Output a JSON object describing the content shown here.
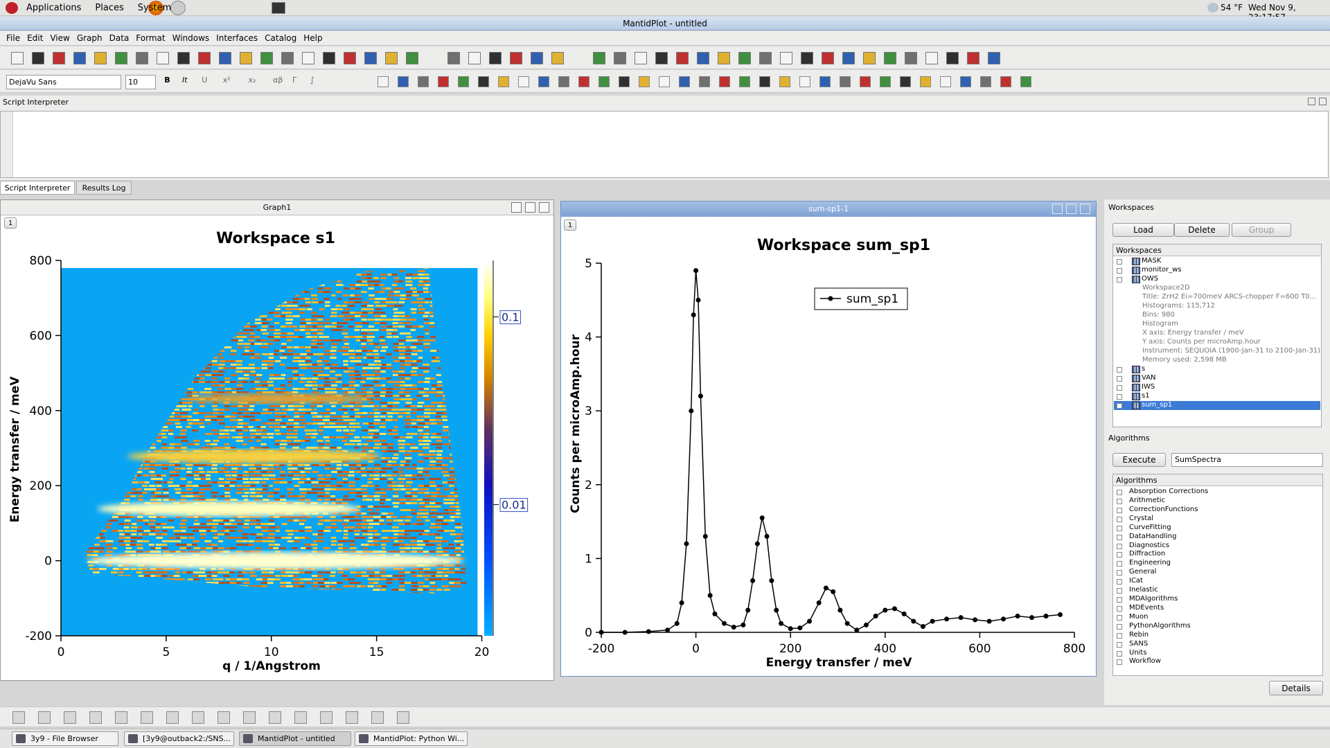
{
  "top_panel": {
    "menus": [
      "Applications",
      "Places",
      "System"
    ],
    "weather": "54 °F",
    "clock": "Wed Nov 9, 23:17:57"
  },
  "window_title": "MantidPlot - untitled",
  "menu_bar": [
    "File",
    "Edit",
    "View",
    "Graph",
    "Data",
    "Format",
    "Windows",
    "Interfaces",
    "Catalog",
    "Help"
  ],
  "font_toolbar": {
    "font": "DejaVu Sans",
    "size": "10",
    "buttons": [
      "B",
      "It",
      "U",
      "x²",
      "x₂",
      "αβ",
      "Γ",
      "∫"
    ]
  },
  "script_panel": {
    "title": "Script Interpreter",
    "tabs": [
      "Script Interpreter",
      "Results Log"
    ]
  },
  "graph_windows": [
    {
      "title": "Graph1",
      "layer": "1"
    },
    {
      "title": "sum-sp1-1",
      "layer": "1"
    }
  ],
  "workspaces": {
    "title": "Workspaces",
    "buttons": [
      "Load",
      "Delete",
      "Group"
    ],
    "tree_header": "Workspaces",
    "items": [
      {
        "name": "MASK"
      },
      {
        "name": "monitor_ws"
      },
      {
        "name": "OWS",
        "details": [
          "Workspace2D",
          "Title: ZrH2 Ei=700meV ARCS-chopper F=600 T0...",
          "Histograms: 115,712",
          "Bins: 980",
          "Histogram",
          "X axis: Energy transfer / meV",
          "Y axis: Counts per microAmp.hour",
          "Instrument: SEQUOIA (1900-Jan-31 to 2100-Jan-31)",
          "Memory used: 2,598 MB"
        ]
      },
      {
        "name": "s"
      },
      {
        "name": "VAN"
      },
      {
        "name": "IWS"
      },
      {
        "name": "s1"
      },
      {
        "name": "sum_sp1",
        "selected": true
      }
    ]
  },
  "algorithms": {
    "title": "Algorithms",
    "execute": "Execute",
    "selected": "SumSpectra",
    "tree_header": "Algorithms",
    "categories": [
      "Absorption Corrections",
      "Arithmetic",
      "CorrectionFunctions",
      "Crystal",
      "CurveFitting",
      "DataHandling",
      "Diagnostics",
      "Diffraction",
      "Engineering",
      "General",
      "ICat",
      "Inelastic",
      "MDAlgorithms",
      "MDEvents",
      "Muon",
      "PythonAlgorithms",
      "Rebin",
      "SANS",
      "Units",
      "Workflow"
    ],
    "details": "Details"
  },
  "taskbar": [
    "3y9 - File Browser",
    "[3y9@outback2:/SNS...",
    "MantidPlot - untitled",
    "MantidPlot: Python Wi..."
  ],
  "chart_data": [
    {
      "type": "heatmap",
      "title": "Workspace s1",
      "x_label": "q / 1/Angstrom",
      "y_label": "Energy transfer / meV",
      "xlim": [
        0,
        20
      ],
      "xticks": [
        0,
        5,
        10,
        15,
        20
      ],
      "ylim": [
        -200,
        800
      ],
      "yticks": [
        -200,
        0,
        200,
        400,
        600,
        800
      ],
      "colorbar": {
        "scale": "log",
        "lim": [
          0.002,
          0.2
        ],
        "ticks": [
          0.01,
          0.1
        ]
      }
    },
    {
      "type": "line",
      "title": "Workspace sum_sp1",
      "x_label": "Energy transfer / meV",
      "y_label": "Counts per microAmp.hour",
      "xlim": [
        -200,
        800
      ],
      "xticks": [
        -200,
        0,
        200,
        400,
        600,
        800
      ],
      "ylim": [
        0,
        5
      ],
      "yticks": [
        0,
        1,
        2,
        3,
        4,
        5
      ],
      "legend": "top-right",
      "x": [
        -200,
        -150,
        -100,
        -60,
        -40,
        -30,
        -20,
        -10,
        -5,
        0,
        5,
        10,
        20,
        30,
        40,
        60,
        80,
        100,
        110,
        120,
        130,
        140,
        150,
        160,
        170,
        180,
        200,
        220,
        240,
        260,
        275,
        290,
        305,
        320,
        340,
        360,
        380,
        400,
        420,
        440,
        460,
        480,
        500,
        530,
        560,
        590,
        620,
        650,
        680,
        710,
        740,
        770
      ],
      "series": [
        {
          "name": "sum_sp1",
          "color": "#000000",
          "values": [
            0,
            0,
            0.01,
            0.03,
            0.12,
            0.4,
            1.2,
            3.0,
            4.3,
            4.9,
            4.5,
            3.2,
            1.3,
            0.5,
            0.25,
            0.12,
            0.07,
            0.1,
            0.3,
            0.7,
            1.2,
            1.55,
            1.3,
            0.7,
            0.3,
            0.12,
            0.05,
            0.06,
            0.15,
            0.4,
            0.6,
            0.55,
            0.3,
            0.12,
            0.03,
            0.1,
            0.22,
            0.3,
            0.32,
            0.25,
            0.15,
            0.08,
            0.15,
            0.18,
            0.2,
            0.17,
            0.15,
            0.18,
            0.22,
            0.2,
            0.22,
            0.24
          ]
        }
      ]
    }
  ]
}
